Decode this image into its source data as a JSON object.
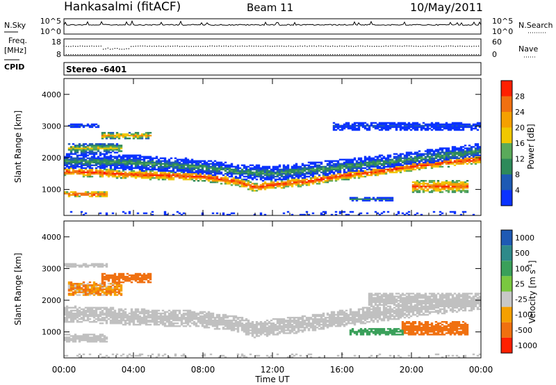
{
  "header": {
    "station": "Hankasalmi (fitACF)",
    "beam": "Beam 11",
    "date": "10/May/2011"
  },
  "strip_nsky": {
    "left_label": "N.Sky",
    "left_ticks": [
      "10^5",
      "10^0"
    ],
    "right_ticks": [
      "10^5",
      "10^0"
    ],
    "right_label": "N.Search",
    "right_line_style": "dotted"
  },
  "strip_freq": {
    "left_label_line1": "Freq.",
    "left_label_line2": "[MHz]",
    "left_ticks": [
      "18",
      "8"
    ],
    "right_ticks": [
      "60",
      "0"
    ],
    "right_label": "Nave",
    "right_line_style": "dotted"
  },
  "strip_cpid": {
    "left_label": "CPID",
    "program": "Stereo -6401"
  },
  "colors": {
    "power_scale": [
      "#0a32ff",
      "#1e5ab4",
      "#2e8a5a",
      "#5aaa5a",
      "#f0c800",
      "#f5a000",
      "#f07010",
      "#ff2000"
    ],
    "velocity_scale": [
      "#1e5ab4",
      "#2e8a8a",
      "#3aa05a",
      "#7ac840",
      "#c8c8c8",
      "#f5a000",
      "#f07010",
      "#ff2000"
    ],
    "ground_scatter": "#c0c0c0"
  },
  "chart_data": [
    {
      "type": "heatmap",
      "panel": "power",
      "xlabel": "Time UT",
      "x_ticks": [
        "00:00",
        "04:00",
        "08:00",
        "12:00",
        "16:00",
        "20:00",
        "00:00"
      ],
      "ylabel": "Slant Range [km]",
      "y_ticks": [
        1000,
        2000,
        3000,
        4000
      ],
      "xlim": [
        0,
        24
      ],
      "ylim": [
        180,
        4500
      ],
      "colorbar_label": "Power [dB]",
      "colorbar_ticks": [
        4,
        8,
        12,
        16,
        20,
        24,
        28
      ],
      "colorbar_range": [
        0,
        32
      ],
      "features": [
        {
          "t0": 0,
          "t1": 24,
          "r_center_curve": [
            [
              0,
              1560
            ],
            [
              2,
              1530
            ],
            [
              4,
              1470
            ],
            [
              6,
              1440
            ],
            [
              8,
              1400
            ],
            [
              10,
              1250
            ],
            [
              11,
              1060
            ],
            [
              12,
              1150
            ],
            [
              14,
              1250
            ],
            [
              16,
              1430
            ],
            [
              18,
              1560
            ],
            [
              20,
              1720
            ],
            [
              22,
              1850
            ],
            [
              24,
              1960
            ]
          ],
          "width_km": 280,
          "power_db": 30
        },
        {
          "t0": 0,
          "t1": 24,
          "r_center_curve": [
            [
              0,
              1900
            ],
            [
              4,
              1850
            ],
            [
              8,
              1700
            ],
            [
              10,
              1560
            ],
            [
              12,
              1500
            ],
            [
              16,
              1700
            ],
            [
              20,
              1950
            ],
            [
              24,
              2200
            ]
          ],
          "width_km": 500,
          "power_db": 12
        },
        {
          "t0": 0.3,
          "t1": 3.3,
          "r_center": 2300,
          "width_km": 350,
          "power_db": 18
        },
        {
          "t0": 2.2,
          "t1": 5.0,
          "r_center": 2700,
          "width_km": 250,
          "power_db": 22
        },
        {
          "t0": 0,
          "t1": 2.5,
          "r_center": 850,
          "width_km": 200,
          "power_db": 30
        },
        {
          "t0": 0.2,
          "t1": 2.0,
          "r_center": 3000,
          "width_km": 150,
          "power_db": 6
        },
        {
          "t0": 20.0,
          "t1": 23.3,
          "r_center": 1100,
          "width_km": 400,
          "power_db": 28
        },
        {
          "t0": 15.5,
          "t1": 24,
          "r_center": 3000,
          "width_km": 250,
          "power_db": 6
        },
        {
          "t0": 16.5,
          "t1": 19.0,
          "r_center": 700,
          "width_km": 150,
          "power_db": 10
        }
      ]
    },
    {
      "type": "heatmap",
      "panel": "velocity",
      "xlabel": "Time UT",
      "x_ticks": [
        "00:00",
        "04:00",
        "08:00",
        "12:00",
        "16:00",
        "20:00",
        "00:00"
      ],
      "ylabel": "Slant Range [km]",
      "y_ticks": [
        1000,
        2000,
        3000,
        4000
      ],
      "xlim": [
        0,
        24
      ],
      "ylim": [
        180,
        4500
      ],
      "colorbar_label": "Velocity [m s^-1]",
      "colorbar_ticks": [
        1000,
        500,
        100,
        25,
        -25,
        -100,
        -500,
        -1000
      ],
      "colorbar_range": [
        -1250,
        1250
      ],
      "features": [
        {
          "t0": 0,
          "t1": 24,
          "r_center_curve": [
            [
              0,
              1560
            ],
            [
              2,
              1530
            ],
            [
              4,
              1470
            ],
            [
              6,
              1440
            ],
            [
              8,
              1400
            ],
            [
              10,
              1250
            ],
            [
              11,
              1060
            ],
            [
              12,
              1150
            ],
            [
              14,
              1250
            ],
            [
              16,
              1430
            ],
            [
              18,
              1560
            ],
            [
              20,
              1720
            ],
            [
              22,
              1850
            ],
            [
              24,
              1960
            ]
          ],
          "width_km": 520,
          "velocity": 0
        },
        {
          "t0": 0.3,
          "t1": 3.3,
          "r_center": 2350,
          "width_km": 450,
          "velocity": -100
        },
        {
          "t0": 2.2,
          "t1": 5.0,
          "r_center": 2700,
          "width_km": 300,
          "velocity": -300
        },
        {
          "t0": 0,
          "t1": 2.5,
          "r_center": 800,
          "width_km": 250,
          "velocity": 0
        },
        {
          "t0": 0,
          "t1": 2.5,
          "r_center": 3100,
          "width_km": 150,
          "velocity": 0
        },
        {
          "t0": 16.5,
          "t1": 19.5,
          "r_center": 1000,
          "width_km": 250,
          "velocity": 300
        },
        {
          "t0": 19.5,
          "t1": 23.3,
          "r_center": 1100,
          "width_km": 450,
          "velocity": -300
        },
        {
          "t0": 17.5,
          "t1": 24,
          "r_center": 2000,
          "width_km": 500,
          "velocity": 0
        }
      ]
    }
  ]
}
